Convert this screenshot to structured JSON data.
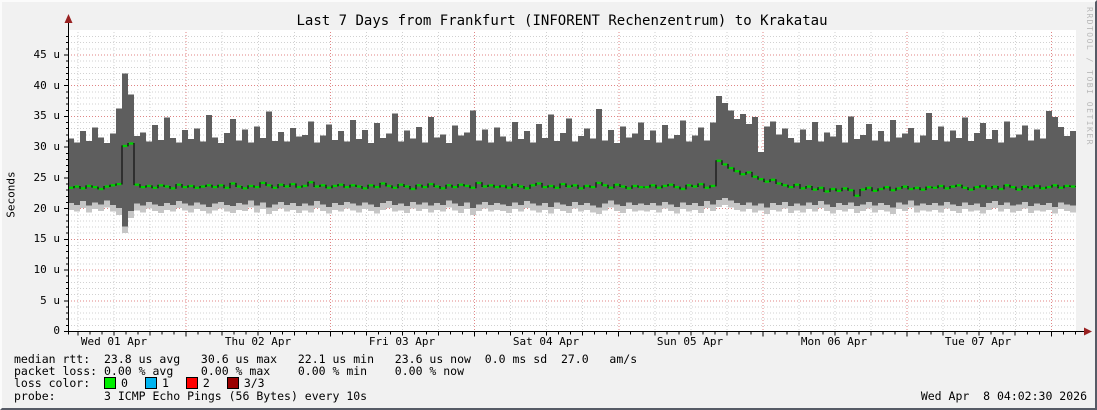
{
  "chart_data": {
    "type": "area",
    "description": "SmokePing latency graph: per-interval smoke band (min-max round trip time) in gray with green median RTT line",
    "title": "Last 7 Days from Frankfurt (INFORENT Rechenzentrum) to Krakatau",
    "ylabel": "Seconds",
    "y_unit": "u (microseconds)",
    "ylim": [
      0,
      49
    ],
    "grid": true,
    "watermark": "RRDTOOL / TOBI OETIKER",
    "y_ticks": [
      "45 u",
      "40 u",
      "35 u",
      "30 u",
      "25 u",
      "20 u",
      "15 u",
      "10 u",
      "5 u",
      "0"
    ],
    "x_labels": [
      "Wed 01 Apr",
      "Thu 02 Apr",
      "Fri 03 Apr",
      "Sat 04 Apr",
      "Sun 05 Apr",
      "Mon 06 Apr",
      "Tue 07 Apr"
    ],
    "colors": {
      "smoke": "#5e5e5e",
      "smoke_fringe": "#c6c6c6",
      "median_line": "#00d000",
      "median_connector": "#000000",
      "axis": "#000000",
      "arrow": "#992222",
      "grid_minor": "#9a9a9a",
      "grid_major": "#d04545",
      "canvas": "#ffffff",
      "background": "#f1f1f1"
    },
    "samples": {
      "count": 168,
      "step_hours": 1,
      "smoke_max": [
        31.4,
        30.8,
        32.6,
        31.0,
        33.2,
        31.6,
        30.7,
        32.2,
        36.3,
        42.0,
        38.6,
        31.8,
        32.4,
        30.9,
        33.6,
        31.2,
        34.8,
        31.5,
        30.8,
        32.8,
        31.3,
        33.0,
        30.9,
        35.2,
        31.6,
        30.7,
        32.3,
        34.6,
        31.1,
        32.9,
        30.8,
        33.4,
        31.5,
        35.8,
        31.0,
        32.5,
        30.9,
        33.1,
        31.7,
        32.0,
        34.2,
        30.8,
        31.9,
        33.7,
        31.2,
        32.6,
        30.9,
        34.4,
        31.3,
        32.8,
        30.7,
        33.9,
        31.5,
        32.2,
        35.5,
        30.9,
        32.7,
        31.4,
        33.3,
        30.8,
        34.9,
        31.6,
        32.1,
        30.7,
        33.5,
        31.9,
        32.4,
        36.0,
        31.1,
        32.9,
        30.8,
        33.2,
        31.7,
        30.9,
        34.1,
        31.3,
        32.6,
        30.8,
        33.8,
        31.5,
        35.3,
        31.0,
        32.3,
        34.7,
        30.9,
        31.8,
        33.0,
        31.4,
        36.2,
        31.1,
        32.8,
        30.7,
        33.4,
        31.6,
        32.2,
        34.0,
        31.2,
        32.7,
        30.8,
        33.6,
        31.4,
        32.0,
        34.3,
        30.9,
        31.9,
        33.2,
        31.1,
        34.0,
        38.3,
        37.2,
        36.0,
        34.6,
        35.4,
        33.8,
        34.9,
        29.2,
        33.4,
        34.2,
        32.1,
        33.0,
        31.5,
        30.8,
        32.9,
        31.2,
        34.1,
        30.9,
        32.4,
        31.7,
        33.6,
        30.8,
        35.0,
        31.3,
        32.0,
        33.8,
        31.1,
        32.6,
        30.9,
        34.4,
        31.6,
        32.2,
        33.1,
        30.8,
        31.9,
        35.6,
        31.2,
        33.4,
        30.9,
        32.7,
        31.5,
        34.8,
        31.0,
        32.3,
        33.9,
        31.3,
        32.8,
        30.8,
        34.2,
        31.6,
        32.1,
        33.5,
        31.1,
        32.9,
        31.4,
        35.9,
        34.9,
        33.3,
        31.8,
        32.6
      ],
      "smoke_min": [
        19.8,
        19.5,
        20.1,
        19.4,
        19.9,
        19.6,
        20.2,
        19.5,
        19.0,
        16.0,
        18.5,
        19.7,
        19.4,
        20.0,
        19.6,
        19.3,
        19.8,
        19.5,
        20.1,
        19.7,
        19.4,
        19.9,
        19.6,
        19.2,
        19.7,
        20.0,
        19.5,
        19.3,
        19.8,
        19.6,
        20.2,
        19.4,
        19.9,
        19.1,
        19.6,
        20.0,
        19.5,
        19.8,
        19.3,
        19.7,
        19.4,
        20.1,
        19.6,
        19.2,
        19.8,
        19.5,
        20.0,
        19.7,
        19.4,
        19.9,
        19.6,
        19.2,
        19.8,
        20.1,
        19.5,
        19.7,
        19.3,
        20.0,
        19.6,
        19.9,
        19.4,
        19.8,
        19.5,
        20.2,
        19.7,
        19.3,
        19.9,
        19.0,
        19.6,
        20.0,
        19.5,
        19.8,
        19.6,
        19.3,
        19.9,
        19.5,
        20.1,
        19.7,
        19.4,
        19.8,
        19.2,
        19.9,
        19.6,
        19.3,
        20.0,
        19.5,
        19.8,
        19.4,
        19.1,
        19.7,
        20.2,
        19.6,
        19.3,
        19.9,
        19.5,
        19.7,
        19.5,
        19.8,
        19.4,
        20.0,
        19.6,
        19.2,
        19.9,
        19.5,
        19.8,
        19.3,
        20.1,
        19.6,
        20.3,
        20.6,
        20.2,
        19.8,
        19.5,
        19.9,
        19.4,
        19.7,
        19.1,
        19.8,
        19.5,
        20.0,
        19.3,
        19.7,
        19.4,
        19.9,
        19.5,
        20.1,
        19.6,
        19.2,
        19.8,
        19.5,
        19.9,
        19.3,
        19.6,
        20.0,
        19.4,
        19.8,
        19.5,
        19.1,
        19.9,
        19.6,
        20.2,
        19.4,
        19.7,
        19.5,
        19.8,
        19.4,
        20.0,
        19.6,
        19.3,
        19.9,
        19.5,
        19.7,
        19.2,
        19.8,
        20.1,
        19.5,
        19.9,
        19.4,
        19.6,
        20.0,
        19.3,
        19.7,
        19.5,
        19.8,
        19.2,
        19.9,
        19.6,
        19.4
      ],
      "median": [
        23.4,
        23.6,
        23.3,
        23.7,
        23.5,
        23.2,
        23.6,
        23.8,
        24.0,
        30.2,
        30.6,
        23.9,
        23.5,
        23.7,
        23.4,
        23.8,
        23.6,
        23.3,
        23.9,
        23.5,
        23.7,
        23.4,
        23.6,
        23.8,
        23.5,
        23.8,
        23.4,
        24.1,
        23.6,
        23.3,
        23.7,
        23.5,
        24.2,
        23.8,
        23.4,
        23.9,
        23.6,
        24.0,
        23.5,
        23.7,
        24.3,
        23.6,
        23.8,
        23.4,
        23.7,
        23.9,
        23.5,
        23.8,
        23.6,
        23.3,
        23.8,
        23.5,
        24.1,
        23.7,
        23.4,
        23.9,
        23.6,
        23.2,
        23.8,
        23.5,
        24.0,
        23.6,
        23.3,
        23.8,
        23.5,
        23.9,
        23.7,
        23.4,
        24.2,
        23.6,
        23.8,
        23.5,
        23.7,
        23.4,
        23.9,
        23.6,
        23.3,
        23.8,
        24.1,
        23.5,
        23.7,
        23.4,
        24.0,
        23.6,
        23.8,
        23.3,
        23.7,
        23.5,
        24.2,
        23.8,
        23.4,
        23.9,
        23.6,
        23.3,
        23.7,
        23.5,
        23.5,
        23.8,
        23.4,
        23.7,
        23.9,
        23.5,
        23.2,
        23.8,
        23.6,
        24.0,
        23.4,
        23.7,
        27.8,
        27.2,
        26.6,
        26.1,
        25.6,
        25.9,
        25.2,
        24.8,
        24.4,
        24.7,
        24.1,
        23.8,
        23.5,
        23.9,
        23.3,
        23.6,
        23.1,
        23.4,
        22.8,
        23.2,
        22.9,
        23.3,
        23.0,
        22.1,
        23.1,
        23.4,
        22.9,
        23.2,
        23.5,
        23.0,
        23.3,
        23.6,
        23.2,
        23.4,
        23.1,
        23.5,
        23.4,
        23.7,
        23.3,
        23.6,
        23.8,
        23.4,
        23.1,
        23.5,
        23.7,
        23.3,
        23.6,
        23.2,
        23.8,
        23.5,
        23.1,
        23.6,
        23.4,
        23.7,
        23.3,
        23.5,
        23.8,
        23.4,
        23.7,
        23.6
      ]
    }
  },
  "stats": {
    "median_rtt": {
      "avg": "23.8 us",
      "max": "30.6 us",
      "min": "22.1 us",
      "now": "23.6 us",
      "sd": "0.0 ms",
      "am_s": "27.0"
    },
    "packet_loss": {
      "avg": "0.00 %",
      "max": "0.00 %",
      "min": "0.00 %",
      "now": "0.00 %"
    }
  },
  "legend": {
    "median_rtt_line": "median rtt:  23.8 us avg   30.6 us max   22.1 us min   23.6 us now  0.0 ms sd  27.0   am/s",
    "packet_loss_line": "packet loss: 0.00 % avg    0.00 % max    0.00 % min    0.00 % now",
    "loss_color_label": "loss color:  ",
    "loss_colors": [
      {
        "label": "0",
        "color": "#00ee00"
      },
      {
        "label": "1",
        "color": "#00b4f0"
      },
      {
        "label": "2",
        "color": "#ff0000"
      },
      {
        "label": "3/3",
        "color": "#990000"
      }
    ],
    "probe_line": "probe:       3 ICMP Echo Pings (56 Bytes) every 10s",
    "timestamp": "Wed Apr  8 04:02:30 2026"
  }
}
